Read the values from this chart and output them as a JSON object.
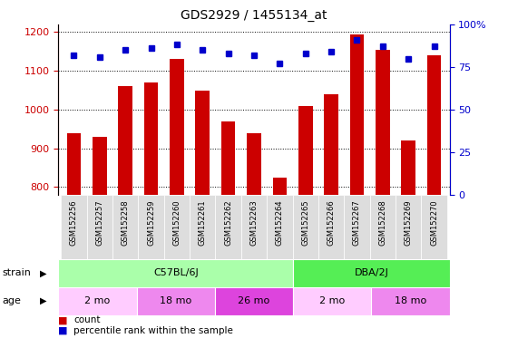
{
  "title": "GDS2929 / 1455134_at",
  "samples": [
    "GSM152256",
    "GSM152257",
    "GSM152258",
    "GSM152259",
    "GSM152260",
    "GSM152261",
    "GSM152262",
    "GSM152263",
    "GSM152264",
    "GSM152265",
    "GSM152266",
    "GSM152267",
    "GSM152268",
    "GSM152269",
    "GSM152270"
  ],
  "counts": [
    940,
    930,
    1060,
    1070,
    1130,
    1050,
    970,
    940,
    825,
    1010,
    1040,
    1195,
    1155,
    920,
    1140
  ],
  "percentile_ranks": [
    82,
    81,
    85,
    86,
    88,
    85,
    83,
    82,
    77,
    83,
    84,
    91,
    87,
    80,
    87
  ],
  "bar_color": "#cc0000",
  "dot_color": "#0000cc",
  "ylim_left": [
    780,
    1220
  ],
  "ylim_right": [
    0,
    100
  ],
  "yticks_left": [
    800,
    900,
    1000,
    1100,
    1200
  ],
  "yticks_right": [
    0,
    25,
    50,
    75,
    100
  ],
  "ylabel_left_color": "#cc0000",
  "ylabel_right_color": "#0000cc",
  "grid_color": "#000000",
  "strain_groups": [
    {
      "label": "C57BL/6J",
      "start": 0,
      "end": 9,
      "color": "#aaffaa"
    },
    {
      "label": "DBA/2J",
      "start": 9,
      "end": 15,
      "color": "#55ee55"
    }
  ],
  "age_groups": [
    {
      "label": "2 mo",
      "start": 0,
      "end": 3,
      "color": "#ffccff"
    },
    {
      "label": "18 mo",
      "start": 3,
      "end": 6,
      "color": "#ee88ee"
    },
    {
      "label": "26 mo",
      "start": 6,
      "end": 9,
      "color": "#dd44dd"
    },
    {
      "label": "2 mo",
      "start": 9,
      "end": 12,
      "color": "#ffccff"
    },
    {
      "label": "18 mo",
      "start": 12,
      "end": 15,
      "color": "#ee88ee"
    }
  ],
  "strain_label": "strain",
  "age_label": "age",
  "legend_count_label": "count",
  "legend_percentile_label": "percentile rank within the sample",
  "background_color": "#ffffff",
  "plot_bg_color": "#ffffff",
  "xticklabel_bg_color": "#dddddd"
}
